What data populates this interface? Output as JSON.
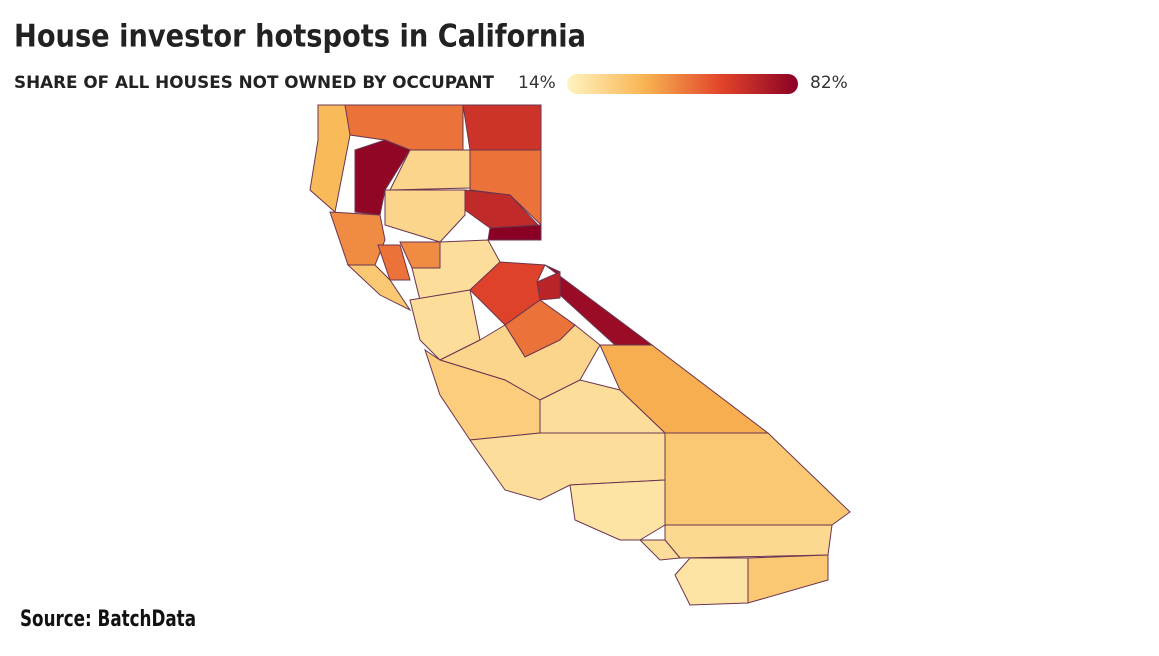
{
  "header": {
    "title": "House investor hotspots in California"
  },
  "legend": {
    "title": "SHARE OF ALL HOUSES NOT OWNED BY OCCUPANT",
    "min": {
      "value": 14,
      "label": "14%"
    },
    "max": {
      "value": 82,
      "label": "82%"
    },
    "colors": [
      "#fff3c2",
      "#f8b552",
      "#e2442a",
      "#8a0025"
    ]
  },
  "map": {
    "values": [
      35,
      50,
      65,
      80,
      25,
      50,
      68,
      82,
      25,
      45,
      50,
      45,
      22,
      30,
      22,
      78,
      70,
      60,
      50,
      25,
      38,
      22,
      28,
      22,
      30,
      20,
      24,
      20,
      30,
      22
    ]
  },
  "footer": {
    "source": "Source: BatchData"
  }
}
